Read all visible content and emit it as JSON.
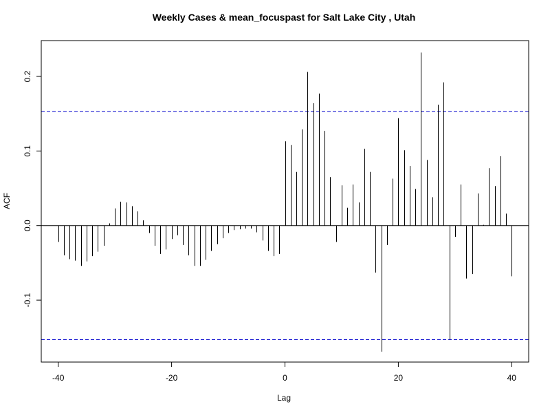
{
  "chart_data": {
    "type": "bar",
    "subtype": "ccf-spike",
    "title": "Weekly Cases & mean_focuspast for Salt Lake City , Utah",
    "xlabel": "Lag",
    "ylabel": "ACF",
    "xlim": [
      -43,
      43
    ],
    "ylim": [
      -0.183,
      0.248
    ],
    "x_ticks": [
      -40,
      -20,
      0,
      20,
      40
    ],
    "x_tick_labels": [
      "-40",
      "-20",
      "0",
      "20",
      "40"
    ],
    "y_ticks": [
      -0.1,
      0.0,
      0.1,
      0.2
    ],
    "y_tick_labels": [
      "-0.1",
      "0.0",
      "0.1",
      "0.2"
    ],
    "confidence_bound": 0.153,
    "colors": {
      "spike": "#000000",
      "zero_line": "#000000",
      "ci_line": "#0000cc"
    },
    "grid": false,
    "legend": "none",
    "series": [
      {
        "lags": [
          -40,
          -39,
          -38,
          -37,
          -36,
          -35,
          -34,
          -33,
          -32,
          -31,
          -30,
          -29,
          -28,
          -27,
          -26,
          -25,
          -24,
          -23,
          -22,
          -21,
          -20,
          -19,
          -18,
          -17,
          -16,
          -15,
          -14,
          -13,
          -12,
          -11,
          -10,
          -9,
          -8,
          -7,
          -6,
          -5,
          -4,
          -3,
          -2,
          -1,
          0,
          1,
          2,
          3,
          4,
          5,
          6,
          7,
          8,
          9,
          10,
          11,
          12,
          13,
          14,
          15,
          16,
          17,
          18,
          19,
          20,
          21,
          22,
          23,
          24,
          25,
          26,
          27,
          28,
          29,
          30,
          31,
          32,
          33,
          34,
          35,
          36,
          37,
          38,
          39,
          40
        ],
        "values": [
          -0.022,
          -0.04,
          -0.045,
          -0.047,
          -0.054,
          -0.048,
          -0.041,
          -0.035,
          -0.027,
          0.003,
          0.023,
          0.032,
          0.031,
          0.026,
          0.019,
          0.007,
          -0.01,
          -0.027,
          -0.038,
          -0.032,
          -0.018,
          -0.013,
          -0.026,
          -0.04,
          -0.054,
          -0.054,
          -0.046,
          -0.034,
          -0.025,
          -0.017,
          -0.01,
          -0.006,
          -0.005,
          -0.004,
          -0.004,
          -0.009,
          -0.02,
          -0.034,
          -0.041,
          -0.038,
          0.113,
          0.108,
          0.072,
          0.129,
          0.206,
          0.164,
          0.177,
          0.127,
          0.065,
          -0.022,
          0.054,
          0.024,
          0.055,
          0.031,
          0.103,
          0.072,
          -0.063,
          -0.169,
          -0.026,
          0.063,
          0.144,
          0.101,
          0.08,
          0.049,
          0.232,
          0.088,
          0.038,
          0.162,
          0.192,
          -0.153,
          -0.015,
          0.055,
          -0.071,
          -0.065,
          0.043,
          0.001,
          0.077,
          0.053,
          0.093,
          0.016,
          -0.068
        ]
      }
    ]
  }
}
